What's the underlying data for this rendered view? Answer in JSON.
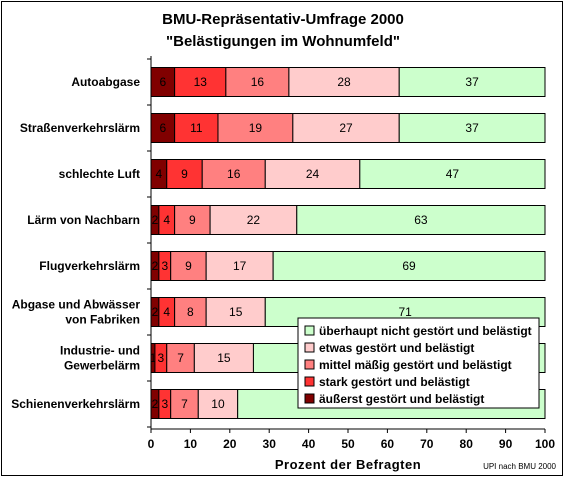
{
  "chart_data": {
    "type": "bar",
    "orientation": "horizontal",
    "stacked": true,
    "title": "BMU-Repräsentativ-Umfrage 2000",
    "subtitle": "\"Belästigungen im Wohnumfeld\"",
    "xlabel": "Prozent der Befragten",
    "xlim": [
      0,
      100
    ],
    "xticks": [
      0,
      10,
      20,
      30,
      40,
      50,
      60,
      70,
      80,
      90,
      100
    ],
    "source": "UPI nach BMU 2000",
    "categories": [
      [
        "Autoabgase"
      ],
      [
        "Straßenverkehrslärm"
      ],
      [
        "schlechte Luft"
      ],
      [
        "Lärm von Nachbarn"
      ],
      [
        "Flugverkehrslärm"
      ],
      [
        "Abgase und Abwässer",
        "von Fabriken"
      ],
      [
        "Industrie- und",
        "Gewerbelärm"
      ],
      [
        "Schienenverkehrslärm"
      ]
    ],
    "series": [
      {
        "name": "äußerst gestört und belästigt",
        "color": "#800000",
        "values": [
          6,
          6,
          4,
          2,
          2,
          2,
          1,
          2
        ]
      },
      {
        "name": "stark gestört und belästigt",
        "color": "#ff3333",
        "values": [
          13,
          11,
          9,
          4,
          3,
          4,
          3,
          3
        ]
      },
      {
        "name": "mittel mäßig gestört und belästigt",
        "color": "#ff8080",
        "values": [
          16,
          19,
          16,
          9,
          9,
          8,
          7,
          7
        ]
      },
      {
        "name": "etwas gestört und belästigt",
        "color": "#ffcccc",
        "values": [
          28,
          27,
          24,
          22,
          17,
          15,
          15,
          10
        ]
      },
      {
        "name": "überhaupt nicht gestört und belästigt",
        "color": "#ccffcc",
        "values": [
          37,
          37,
          47,
          63,
          69,
          71,
          74,
          78
        ]
      }
    ],
    "value_labels": [
      [
        "6",
        "13",
        "16",
        "28",
        "37"
      ],
      [
        "6",
        "11",
        "19",
        "27",
        "37"
      ],
      [
        "4",
        "9",
        "16",
        "24",
        "47"
      ],
      [
        "2",
        "4",
        "9",
        "22",
        "63"
      ],
      [
        "2",
        "3",
        "9",
        "17",
        "69"
      ],
      [
        "2",
        "4",
        "8",
        "15",
        "71"
      ],
      [
        "1",
        "3",
        "7",
        "15",
        ""
      ],
      [
        "2",
        "3",
        "7",
        "10",
        ""
      ]
    ],
    "legend": {
      "placement": "bottom-right, inside plot",
      "order": [
        4,
        3,
        2,
        1,
        0
      ]
    }
  }
}
